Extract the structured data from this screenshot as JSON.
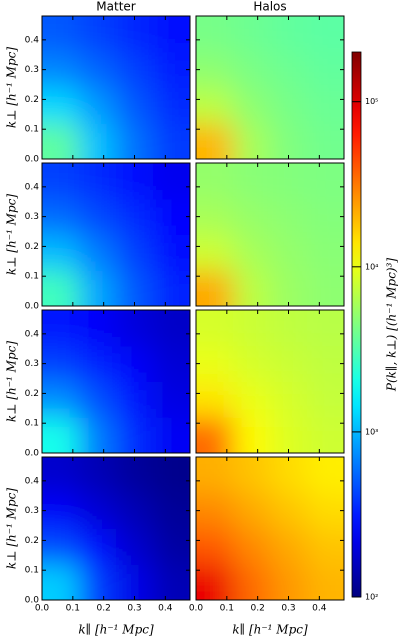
{
  "chart_data": {
    "type": "heatmap",
    "xlabel": "k∥ [h⁻¹ Mpc]",
    "ylabel": "k⊥ [h⁻¹ Mpc]",
    "xlim": [
      0,
      0.48
    ],
    "ylim": [
      0,
      0.48
    ],
    "xticks": [
      {
        "value": 0,
        "label": "0.0"
      },
      0.1,
      0.2,
      0.3,
      0.4
    ],
    "yticks": [
      {
        "value": 0,
        "label": "0.0"
      },
      0.1,
      0.2,
      0.3,
      0.4
    ],
    "x": [
      0.06,
      0.18,
      0.3,
      0.42
    ],
    "y": [
      0.06,
      0.18,
      0.3,
      0.42
    ],
    "colormap": "jet",
    "colorbar": {
      "label": "P(k∥, k⊥) [(h⁻¹ Mpc)³]",
      "log": true,
      "lim": [
        100,
        200000
      ],
      "ticks": [
        {
          "value": 100,
          "label": "10²"
        },
        {
          "value": 1000,
          "label": "10³"
        },
        {
          "value": 10000,
          "label": "10⁴"
        },
        {
          "value": 100000,
          "label": "10⁵"
        }
      ]
    },
    "series": [
      {
        "name": "Matter",
        "panels": [
          [
            [
              3500,
              1100,
              600,
              400
            ],
            [
              1300,
              800,
              500,
              350
            ],
            [
              700,
              550,
              420,
              320
            ],
            [
              500,
              420,
              340,
              280
            ]
          ],
          [
            [
              2800,
              900,
              500,
              330
            ],
            [
              1050,
              650,
              420,
              290
            ],
            [
              580,
              450,
              350,
              270
            ],
            [
              420,
              350,
              280,
              230
            ]
          ],
          [
            [
              2000,
              650,
              360,
              240
            ],
            [
              750,
              470,
              300,
              210
            ],
            [
              420,
              330,
              250,
              190
            ],
            [
              300,
              250,
              200,
              170
            ]
          ],
          [
            [
              1200,
              400,
              220,
              150
            ],
            [
              450,
              280,
              180,
              130
            ],
            [
              250,
              190,
              150,
              120
            ],
            [
              180,
              150,
              125,
              110
            ]
          ]
        ]
      },
      {
        "name": "Halos",
        "panels": [
          [
            [
              20000,
              6000,
              4500,
              4000
            ],
            [
              7000,
              5000,
              4200,
              3800
            ],
            [
              5000,
              4300,
              3900,
              3600
            ],
            [
              4200,
              3900,
              3600,
              3400
            ]
          ],
          [
            [
              22000,
              7000,
              5500,
              5000
            ],
            [
              8000,
              6000,
              5200,
              4800
            ],
            [
              6000,
              5300,
              4900,
              4600
            ],
            [
              5200,
              4800,
              4600,
              4400
            ]
          ],
          [
            [
              35000,
              12000,
              9000,
              8000
            ],
            [
              14000,
              10000,
              8500,
              7500
            ],
            [
              10000,
              8500,
              7800,
              7200
            ],
            [
              8500,
              7800,
              7200,
              6800
            ]
          ],
          [
            [
              90000,
              35000,
              25000,
              20000
            ],
            [
              40000,
              28000,
              22000,
              18000
            ],
            [
              28000,
              22000,
              18000,
              15000
            ],
            [
              21000,
              18000,
              15000,
              13000
            ]
          ]
        ]
      }
    ]
  }
}
